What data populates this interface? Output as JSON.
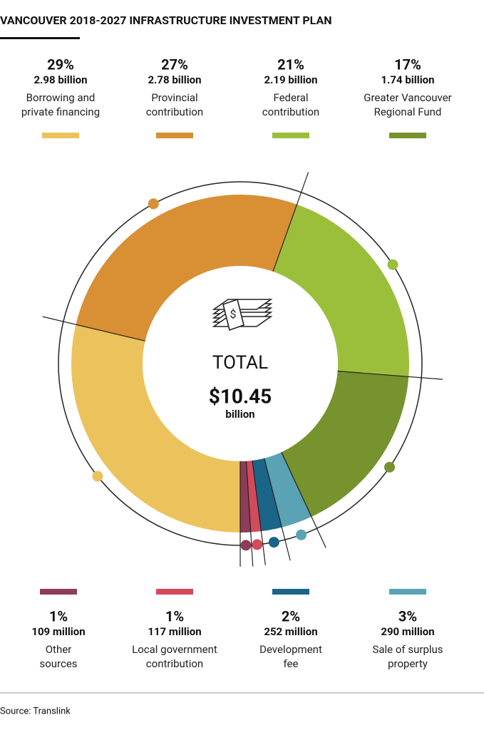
{
  "chart_data": {
    "type": "pie",
    "title": "VANCOUVER 2018-2027 INFRASTRUCTURE INVESTMENT PLAN",
    "categories": [
      "Borrowing and\nprivate financing",
      "Provincial\ncontribution",
      "Federal\ncontribution",
      "Greater Vancouver\nRegional Fund",
      "Other\nsources",
      "Local government\ncontribution",
      "Development\nfee",
      "Sale of surplus\nproperty"
    ],
    "values": [
      29,
      27,
      21,
      17,
      1,
      1,
      2,
      3
    ],
    "value_labels": [
      "29%",
      "27%",
      "21%",
      "17%",
      "1%",
      "1%",
      "2%",
      "3%"
    ],
    "amount_labels": [
      "2.98 billion",
      "2.78 billion",
      "2.19 billion",
      "1.74 billion",
      "109 million",
      "117 million",
      "252 million",
      "290 million"
    ],
    "colors": [
      "#ecc25c",
      "#d98f33",
      "#9cbf3b",
      "#77932e",
      "#8e3c5a",
      "#d24b5b",
      "#1b6589",
      "#5aa3b5"
    ],
    "center_title": "TOTAL",
    "center_value": "$10.45",
    "center_unit": "billion",
    "source": "Source: Translink"
  }
}
